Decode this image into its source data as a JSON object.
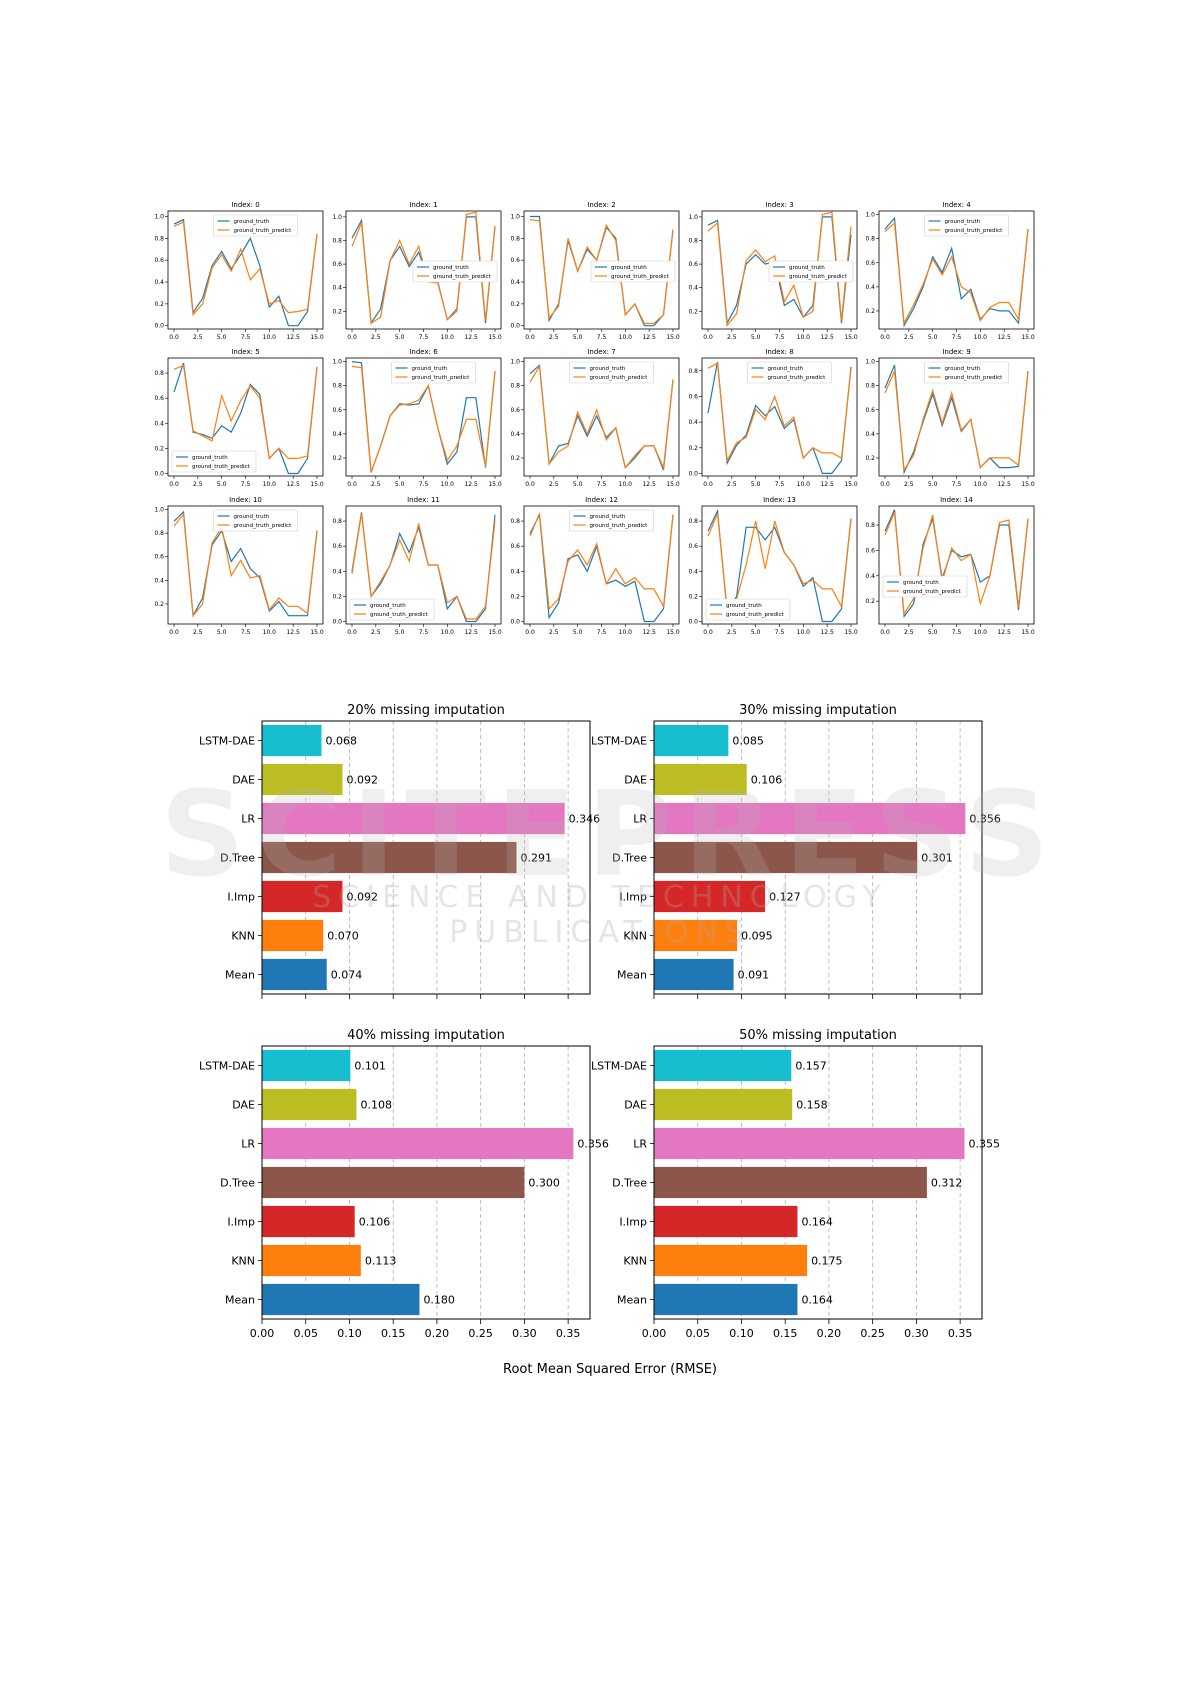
{
  "chart_data": [
    {
      "type": "line-grid",
      "x_ticks": [
        "0.0",
        "2.5",
        "5.0",
        "7.5",
        "10.0",
        "12.5",
        "15.0"
      ],
      "legend": [
        "ground_truth",
        "ground_truth_predict"
      ],
      "colors": {
        "ground_truth": "#1f77b4",
        "ground_truth_predict": "#ff7f0e"
      },
      "panels": [
        {
          "title": "Index: 0",
          "y_ticks": [
            "0.0",
            "0.2",
            "0.4",
            "0.6",
            "0.8",
            "1.0"
          ],
          "ylim": [
            -0.03,
            1.05
          ],
          "legend_pos": "top",
          "ground_truth": [
            0.93,
            0.97,
            0.12,
            0.25,
            0.55,
            0.68,
            0.52,
            0.65,
            0.8,
            0.55,
            0.17,
            0.27,
            0.0,
            0.0,
            0.13,
            0.84
          ],
          "ground_truth_predict": [
            0.91,
            0.95,
            0.1,
            0.2,
            0.53,
            0.65,
            0.5,
            0.7,
            0.42,
            0.52,
            0.2,
            0.23,
            0.12,
            0.13,
            0.15,
            0.84
          ]
        },
        {
          "title": "Index: 1",
          "y_ticks": [
            "0.2",
            "0.4",
            "0.6",
            "0.8",
            "1.0"
          ],
          "ylim": [
            0.05,
            1.05
          ],
          "legend_pos": "right",
          "ground_truth": [
            0.82,
            0.97,
            0.1,
            0.22,
            0.63,
            0.75,
            0.58,
            0.7,
            0.48,
            0.45,
            0.13,
            0.22,
            1.0,
            1.0,
            0.1,
            0.92
          ],
          "ground_truth_predict": [
            0.75,
            0.95,
            0.1,
            0.15,
            0.63,
            0.8,
            0.6,
            0.75,
            0.45,
            0.44,
            0.13,
            0.2,
            1.02,
            1.04,
            0.12,
            0.92
          ]
        },
        {
          "title": "Index: 2",
          "y_ticks": [
            "0.0",
            "0.2",
            "0.4",
            "0.6",
            "0.8",
            "1.0"
          ],
          "ylim": [
            -0.03,
            1.05
          ],
          "legend_pos": "right",
          "ground_truth": [
            1.0,
            1.0,
            0.05,
            0.2,
            0.78,
            0.5,
            0.7,
            0.6,
            0.9,
            0.8,
            0.1,
            0.2,
            0.0,
            0.0,
            0.1,
            0.88
          ],
          "ground_truth_predict": [
            0.97,
            0.96,
            0.07,
            0.18,
            0.8,
            0.5,
            0.72,
            0.6,
            0.92,
            0.78,
            0.1,
            0.2,
            0.02,
            0.02,
            0.1,
            0.88
          ]
        },
        {
          "title": "Index: 3",
          "y_ticks": [
            "0.2",
            "0.4",
            "0.6",
            "0.8",
            "1.0"
          ],
          "ylim": [
            0.05,
            1.05
          ],
          "legend_pos": "right",
          "ground_truth": [
            0.93,
            0.97,
            0.1,
            0.25,
            0.6,
            0.68,
            0.6,
            0.62,
            0.25,
            0.3,
            0.15,
            0.25,
            1.0,
            1.0,
            0.1,
            0.85
          ],
          "ground_truth_predict": [
            0.88,
            0.95,
            0.08,
            0.18,
            0.63,
            0.72,
            0.62,
            0.67,
            0.28,
            0.42,
            0.15,
            0.2,
            1.02,
            1.04,
            0.12,
            0.92
          ]
        },
        {
          "title": "Index: 4",
          "y_ticks": [
            "0.2",
            "0.4",
            "0.6",
            "0.8",
            "1.0"
          ],
          "ylim": [
            0.05,
            1.03
          ],
          "legend_pos": "top",
          "ground_truth": [
            0.88,
            0.97,
            0.08,
            0.22,
            0.4,
            0.65,
            0.52,
            0.72,
            0.3,
            0.38,
            0.13,
            0.22,
            0.2,
            0.2,
            0.1,
            0.88
          ],
          "ground_truth_predict": [
            0.86,
            0.93,
            0.1,
            0.25,
            0.42,
            0.63,
            0.5,
            0.65,
            0.4,
            0.35,
            0.12,
            0.23,
            0.27,
            0.27,
            0.13,
            0.88
          ]
        },
        {
          "title": "Index: 5",
          "y_ticks": [
            "0.0",
            "0.2",
            "0.4",
            "0.6",
            "0.8"
          ],
          "ylim": [
            -0.02,
            0.92
          ],
          "legend_pos": "bottom",
          "ground_truth": [
            0.65,
            0.88,
            0.33,
            0.31,
            0.28,
            0.38,
            0.33,
            0.48,
            0.71,
            0.63,
            0.12,
            0.2,
            0.0,
            0.0,
            0.12,
            0.85
          ],
          "ground_truth_predict": [
            0.83,
            0.86,
            0.34,
            0.3,
            0.26,
            0.62,
            0.42,
            0.58,
            0.7,
            0.6,
            0.12,
            0.2,
            0.12,
            0.12,
            0.14,
            0.85
          ]
        },
        {
          "title": "Index: 6",
          "y_ticks": [
            "0.2",
            "0.4",
            "0.6",
            "0.8",
            "1.0"
          ],
          "ylim": [
            0.05,
            1.03
          ],
          "legend_pos": "top",
          "ground_truth": [
            1.0,
            0.99,
            0.08,
            0.3,
            0.55,
            0.65,
            0.64,
            0.65,
            0.8,
            0.45,
            0.15,
            0.25,
            0.7,
            0.7,
            0.12,
            0.92
          ],
          "ground_truth_predict": [
            0.96,
            0.95,
            0.08,
            0.3,
            0.55,
            0.64,
            0.65,
            0.68,
            0.8,
            0.45,
            0.18,
            0.3,
            0.52,
            0.52,
            0.13,
            0.92
          ]
        },
        {
          "title": "Index: 7",
          "y_ticks": [
            "0.2",
            "0.4",
            "0.6",
            "0.8",
            "1.0"
          ],
          "ylim": [
            0.05,
            1.03
          ],
          "legend_pos": "top",
          "ground_truth": [
            0.9,
            0.97,
            0.15,
            0.3,
            0.32,
            0.55,
            0.38,
            0.55,
            0.37,
            0.45,
            0.12,
            0.2,
            0.3,
            0.3,
            0.1,
            0.85
          ],
          "ground_truth_predict": [
            0.83,
            0.96,
            0.15,
            0.25,
            0.3,
            0.58,
            0.4,
            0.6,
            0.35,
            0.45,
            0.12,
            0.22,
            0.3,
            0.3,
            0.12,
            0.85
          ]
        },
        {
          "title": "Index: 8",
          "y_ticks": [
            "0.0",
            "0.2",
            "0.4",
            "0.6",
            "0.8"
          ],
          "ylim": [
            -0.02,
            0.9
          ],
          "legend_pos": "top",
          "ground_truth": [
            0.47,
            0.87,
            0.08,
            0.22,
            0.3,
            0.53,
            0.45,
            0.52,
            0.35,
            0.42,
            0.12,
            0.2,
            0.0,
            0.0,
            0.1,
            0.83
          ],
          "ground_truth_predict": [
            0.82,
            0.86,
            0.1,
            0.24,
            0.28,
            0.5,
            0.42,
            0.6,
            0.37,
            0.44,
            0.12,
            0.2,
            0.16,
            0.16,
            0.12,
            0.82
          ]
        },
        {
          "title": "Index: 9",
          "y_ticks": [
            "0.2",
            "0.4",
            "0.6",
            "0.8",
            "1.0"
          ],
          "ylim": [
            0.05,
            1.03
          ],
          "legend_pos": "top",
          "ground_truth": [
            0.78,
            0.97,
            0.08,
            0.25,
            0.5,
            0.73,
            0.47,
            0.7,
            0.42,
            0.52,
            0.12,
            0.2,
            0.12,
            0.12,
            0.13,
            0.92
          ],
          "ground_truth_predict": [
            0.74,
            0.92,
            0.1,
            0.22,
            0.52,
            0.76,
            0.49,
            0.74,
            0.43,
            0.52,
            0.12,
            0.2,
            0.2,
            0.2,
            0.14,
            0.92
          ]
        },
        {
          "title": "Index: 10",
          "y_ticks": [
            "0.2",
            "0.4",
            "0.6",
            "0.8",
            "1.0"
          ],
          "ylim": [
            0.03,
            1.03
          ],
          "legend_pos": "top",
          "ground_truth": [
            0.9,
            0.98,
            0.1,
            0.25,
            0.7,
            0.82,
            0.56,
            0.67,
            0.5,
            0.42,
            0.14,
            0.22,
            0.1,
            0.1,
            0.1,
            0.82
          ],
          "ground_truth_predict": [
            0.86,
            0.96,
            0.1,
            0.2,
            0.72,
            0.85,
            0.44,
            0.57,
            0.42,
            0.44,
            0.15,
            0.25,
            0.18,
            0.18,
            0.12,
            0.82
          ]
        },
        {
          "title": "Index: 11",
          "y_ticks": [
            "0.0",
            "0.2",
            "0.4",
            "0.6",
            "0.8"
          ],
          "ylim": [
            -0.02,
            0.92
          ],
          "legend_pos": "bottom",
          "ground_truth": [
            0.4,
            0.87,
            0.2,
            0.3,
            0.45,
            0.7,
            0.55,
            0.75,
            0.45,
            0.45,
            0.1,
            0.2,
            0.0,
            0.0,
            0.1,
            0.85
          ],
          "ground_truth_predict": [
            0.38,
            0.86,
            0.2,
            0.32,
            0.45,
            0.65,
            0.48,
            0.78,
            0.45,
            0.45,
            0.15,
            0.2,
            0.02,
            0.02,
            0.12,
            0.8
          ]
        },
        {
          "title": "Index: 12",
          "y_ticks": [
            "0.0",
            "0.2",
            "0.4",
            "0.6",
            "0.8"
          ],
          "ylim": [
            -0.02,
            0.92
          ],
          "legend_pos": "top",
          "ground_truth": [
            0.7,
            0.85,
            0.03,
            0.15,
            0.5,
            0.53,
            0.4,
            0.6,
            0.3,
            0.33,
            0.28,
            0.32,
            0.0,
            0.0,
            0.1,
            0.85
          ],
          "ground_truth_predict": [
            0.68,
            0.86,
            0.1,
            0.18,
            0.48,
            0.57,
            0.45,
            0.62,
            0.3,
            0.42,
            0.3,
            0.35,
            0.26,
            0.26,
            0.12,
            0.85
          ]
        },
        {
          "title": "Index: 13",
          "y_ticks": [
            "0.0",
            "0.2",
            "0.4",
            "0.6",
            "0.8"
          ],
          "ylim": [
            -0.02,
            0.92
          ],
          "legend_pos": "bottom",
          "ground_truth": [
            0.72,
            0.88,
            0.08,
            0.2,
            0.75,
            0.75,
            0.65,
            0.75,
            0.55,
            0.45,
            0.28,
            0.35,
            0.0,
            0.0,
            0.1,
            0.82
          ],
          "ground_truth_predict": [
            0.68,
            0.86,
            0.1,
            0.18,
            0.45,
            0.8,
            0.42,
            0.8,
            0.55,
            0.45,
            0.3,
            0.33,
            0.26,
            0.26,
            0.12,
            0.82
          ]
        },
        {
          "title": "Index: 14",
          "y_ticks": [
            "0.2",
            "0.4",
            "0.6",
            "0.8"
          ],
          "ylim": [
            0.02,
            0.95
          ],
          "legend_pos": "left",
          "ground_truth": [
            0.75,
            0.92,
            0.08,
            0.18,
            0.65,
            0.85,
            0.38,
            0.6,
            0.55,
            0.57,
            0.35,
            0.4,
            0.8,
            0.8,
            0.13,
            0.85
          ],
          "ground_truth_predict": [
            0.72,
            0.9,
            0.1,
            0.22,
            0.62,
            0.88,
            0.35,
            0.62,
            0.52,
            0.57,
            0.18,
            0.4,
            0.82,
            0.84,
            0.15,
            0.85
          ]
        }
      ]
    },
    {
      "type": "bar-horizontal",
      "xlabel": "Root Mean Squared Error (RMSE)",
      "categories": [
        "LSTM-DAE",
        "DAE",
        "LR",
        "D.Tree",
        "I.Imp",
        "KNN",
        "Mean"
      ],
      "colors": [
        "#17becf",
        "#bcbd22",
        "#e377c2",
        "#8c564b",
        "#d62728",
        "#ff7f0e",
        "#1f77b4"
      ],
      "x_ticks": [
        "0.00",
        "0.05",
        "0.10",
        "0.15",
        "0.20",
        "0.25",
        "0.30",
        "0.35"
      ],
      "xlim": [
        0,
        0.375
      ],
      "grid": "x-dashed",
      "panels": [
        {
          "title": "20% missing imputation",
          "values": [
            0.068,
            0.092,
            0.346,
            0.291,
            0.092,
            0.07,
            0.074
          ],
          "labels": [
            "0.068",
            "0.092",
            "0.346",
            "0.291",
            "0.092",
            "0.070",
            "0.074"
          ]
        },
        {
          "title": "30% missing imputation",
          "values": [
            0.085,
            0.106,
            0.356,
            0.301,
            0.127,
            0.095,
            0.091
          ],
          "labels": [
            "0.085",
            "0.106",
            "0.356",
            "0.301",
            "0.127",
            "0.095",
            "0.091"
          ]
        },
        {
          "title": "40% missing imputation",
          "values": [
            0.101,
            0.108,
            0.356,
            0.3,
            0.106,
            0.113,
            0.18
          ],
          "labels": [
            "0.101",
            "0.108",
            "0.356",
            "0.300",
            "0.106",
            "0.113",
            "0.180"
          ]
        },
        {
          "title": "50% missing imputation",
          "values": [
            0.157,
            0.158,
            0.355,
            0.312,
            0.164,
            0.175,
            0.164
          ],
          "labels": [
            "0.157",
            "0.158",
            "0.355",
            "0.312",
            "0.164",
            "0.175",
            "0.164"
          ]
        }
      ]
    }
  ],
  "watermark": {
    "big": "SCITEPRESS",
    "small": "SCIENCE AND TECHNOLOGY PUBLICATIONS"
  }
}
